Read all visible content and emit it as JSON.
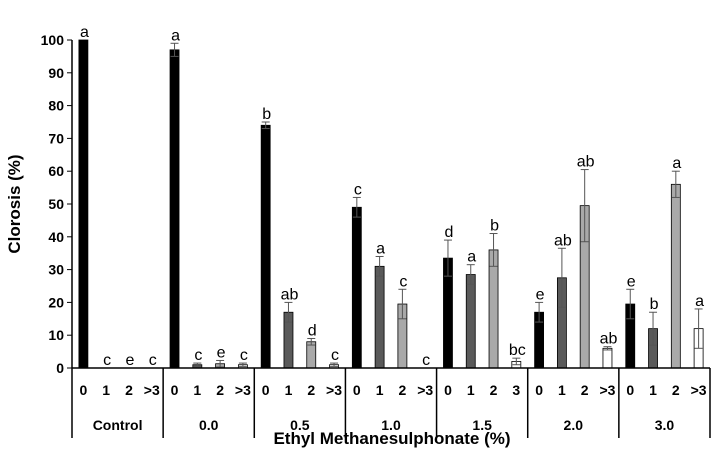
{
  "chart_data": {
    "type": "bar",
    "xlabel": "Ethyl Methanesulphonate (%)",
    "ylabel": "Clorosis (%)",
    "ylim": [
      0,
      100
    ],
    "yticks": [
      0,
      10,
      20,
      30,
      40,
      50,
      60,
      70,
      80,
      90,
      100
    ],
    "grid": false,
    "legend": "none",
    "series_colors": [
      "#000000",
      "#5a5a5a",
      "#a9a9a9",
      "#ffffff"
    ],
    "groups": [
      {
        "name": "Control",
        "bars": [
          {
            "cat": "0",
            "value": 100,
            "error": 0,
            "letter": "a"
          },
          {
            "cat": "1",
            "value": 0,
            "error": 0,
            "letter": "c"
          },
          {
            "cat": "2",
            "value": 0,
            "error": 0,
            "letter": "e"
          },
          {
            "cat": ">3",
            "value": 0,
            "error": 0,
            "letter": "c"
          }
        ]
      },
      {
        "name": "0.0",
        "bars": [
          {
            "cat": "0",
            "value": 97,
            "error": 2,
            "letter": "a"
          },
          {
            "cat": "1",
            "value": 1,
            "error": 0.5,
            "letter": "c"
          },
          {
            "cat": "2",
            "value": 1.3,
            "error": 1,
            "letter": "e"
          },
          {
            "cat": ">3",
            "value": 1,
            "error": 0.5,
            "letter": "c"
          }
        ]
      },
      {
        "name": "0.5",
        "bars": [
          {
            "cat": "0",
            "value": 74,
            "error": 1,
            "letter": "b"
          },
          {
            "cat": "1",
            "value": 17,
            "error": 3,
            "letter": "ab"
          },
          {
            "cat": "2",
            "value": 8,
            "error": 1,
            "letter": "d"
          },
          {
            "cat": ">3",
            "value": 1,
            "error": 0.5,
            "letter": "c"
          }
        ]
      },
      {
        "name": "1.0",
        "bars": [
          {
            "cat": "0",
            "value": 49,
            "error": 3,
            "letter": "c"
          },
          {
            "cat": "1",
            "value": 31,
            "error": 3,
            "letter": "a"
          },
          {
            "cat": "2",
            "value": 19.5,
            "error": 4.5,
            "letter": "c"
          },
          {
            "cat": ">3",
            "value": 0,
            "error": 0,
            "letter": "c"
          }
        ]
      },
      {
        "name": "1.5",
        "bars": [
          {
            "cat": "0",
            "value": 33.5,
            "error": 5.5,
            "letter": "d"
          },
          {
            "cat": "1",
            "value": 28.5,
            "error": 3,
            "letter": "a"
          },
          {
            "cat": "2",
            "value": 36,
            "error": 5,
            "letter": "b"
          },
          {
            "cat": "3",
            "value": 2,
            "error": 1,
            "letter": "bc"
          }
        ]
      },
      {
        "name": "2.0",
        "bars": [
          {
            "cat": "0",
            "value": 17,
            "error": 3,
            "letter": "e"
          },
          {
            "cat": "1",
            "value": 27.5,
            "error": 9,
            "letter": "ab"
          },
          {
            "cat": "2",
            "value": 49.5,
            "error": 11,
            "letter": "ab"
          },
          {
            "cat": ">3",
            "value": 6,
            "error": 0.5,
            "letter": "ab"
          }
        ]
      },
      {
        "name": "3.0",
        "bars": [
          {
            "cat": "0",
            "value": 19.5,
            "error": 4.5,
            "letter": "e"
          },
          {
            "cat": "1",
            "value": 12,
            "error": 5,
            "letter": "b"
          },
          {
            "cat": "2",
            "value": 56,
            "error": 4,
            "letter": "a"
          },
          {
            "cat": ">3",
            "value": 12,
            "error": 6,
            "letter": "a"
          }
        ]
      }
    ]
  }
}
